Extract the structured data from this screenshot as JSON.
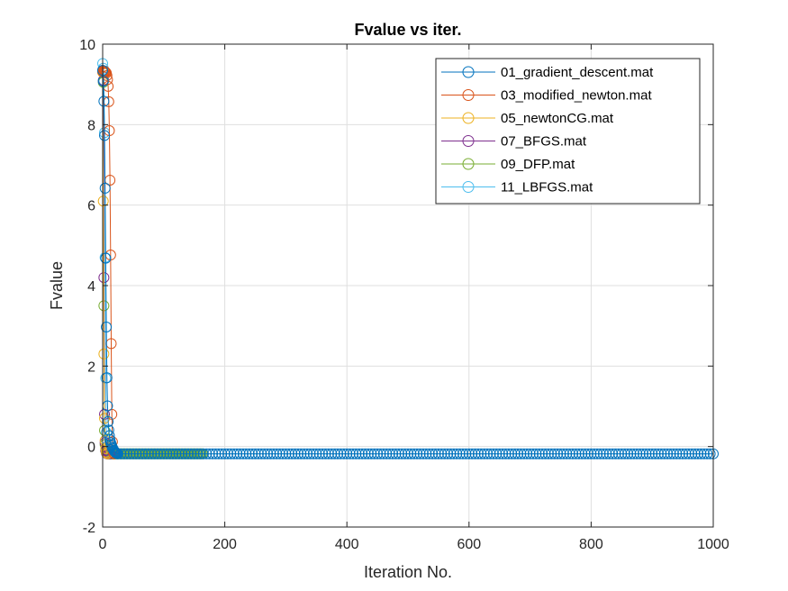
{
  "chart_data": {
    "type": "line",
    "title": "Fvalue vs iter.",
    "xlabel": "Iteration No.",
    "ylabel": "Fvalue",
    "xlim": [
      0,
      1000
    ],
    "ylim": [
      -2,
      10
    ],
    "xticks": [
      0,
      200,
      400,
      600,
      800,
      1000
    ],
    "yticks": [
      -2,
      0,
      2,
      4,
      6,
      8,
      10
    ],
    "xtick_labels": [
      "0",
      "200",
      "400",
      "600",
      "800",
      "1000"
    ],
    "ytick_labels": [
      "-2",
      "0",
      "2",
      "4",
      "6",
      "8",
      "10"
    ],
    "grid": true,
    "legend_position": "top-right",
    "marker": "circle",
    "series": [
      {
        "name": "01_gradient_descent.mat",
        "color": "#0072BD",
        "points": [
          [
            0,
            9.35
          ],
          [
            1,
            9.08
          ],
          [
            2,
            8.58
          ],
          [
            3,
            7.73
          ],
          [
            4,
            6.42
          ],
          [
            5,
            4.68
          ],
          [
            6,
            2.97
          ],
          [
            7,
            1.71
          ],
          [
            8,
            1.01
          ],
          [
            9,
            0.62
          ],
          [
            10,
            0.41
          ],
          [
            11,
            0.27
          ],
          [
            12,
            0.17
          ],
          [
            13,
            0.1
          ],
          [
            14,
            0.05
          ],
          [
            15,
            0.01
          ],
          [
            16,
            -0.03
          ],
          [
            17,
            -0.06
          ],
          [
            18,
            -0.09
          ],
          [
            19,
            -0.11
          ],
          [
            20,
            -0.13
          ],
          [
            21,
            -0.15
          ],
          [
            22,
            -0.16
          ],
          [
            23,
            -0.17
          ],
          [
            24,
            -0.17
          ]
        ],
        "tail": {
          "from": 25,
          "to": 1000,
          "step": 5,
          "y": -0.18
        }
      },
      {
        "name": "03_modified_newton.mat",
        "color": "#D95319",
        "points": [
          [
            0,
            9.32
          ],
          [
            1,
            9.33
          ],
          [
            2,
            9.3
          ],
          [
            3,
            9.33
          ],
          [
            4,
            9.31
          ],
          [
            5,
            9.3
          ],
          [
            6,
            9.28
          ],
          [
            7,
            9.22
          ],
          [
            8,
            9.12
          ],
          [
            9,
            8.95
          ],
          [
            10,
            8.57
          ],
          [
            11,
            7.85
          ],
          [
            12,
            6.62
          ],
          [
            13,
            4.76
          ],
          [
            14,
            2.56
          ],
          [
            15,
            0.8
          ],
          [
            16,
            0.12
          ],
          [
            17,
            -0.1
          ],
          [
            18,
            -0.16
          ],
          [
            19,
            -0.18
          ]
        ]
      },
      {
        "name": "05_newtonCG.mat",
        "color": "#EDB120",
        "points": [
          [
            0,
            9.3
          ],
          [
            1,
            6.1
          ],
          [
            2,
            2.3
          ],
          [
            3,
            0.7
          ],
          [
            4,
            0.15
          ],
          [
            5,
            -0.05
          ],
          [
            6,
            -0.14
          ],
          [
            7,
            -0.17
          ],
          [
            8,
            -0.18
          ]
        ]
      },
      {
        "name": "07_BFGS.mat",
        "color": "#7E2F8E",
        "points": [
          [
            0,
            9.34
          ],
          [
            1,
            9.1
          ],
          [
            2,
            4.2
          ],
          [
            3,
            0.8
          ],
          [
            4,
            0.1
          ],
          [
            5,
            -0.1
          ],
          [
            6,
            -0.16
          ],
          [
            7,
            -0.18
          ],
          [
            8,
            -0.18
          ],
          [
            9,
            -0.18
          ],
          [
            10,
            -0.18
          ],
          [
            11,
            -0.18
          ],
          [
            12,
            -0.18
          ]
        ]
      },
      {
        "name": "09_DFP.mat",
        "color": "#77AC30",
        "points": [
          [
            0,
            9.34
          ],
          [
            1,
            9.05
          ],
          [
            2,
            3.5
          ],
          [
            3,
            0.4
          ],
          [
            4,
            0.05
          ],
          [
            5,
            -0.1
          ],
          [
            6,
            -0.15
          ],
          [
            7,
            -0.17
          ]
        ],
        "tail": {
          "from": 8,
          "to": 165,
          "step": 2,
          "y": -0.18
        }
      },
      {
        "name": "11_LBFGS.mat",
        "color": "#4DBEEE",
        "points": [
          [
            0,
            9.52
          ],
          [
            1,
            9.4
          ],
          [
            2,
            9.1
          ],
          [
            3,
            7.8
          ],
          [
            4,
            4.7
          ],
          [
            5,
            1.7
          ],
          [
            6,
            0.35
          ],
          [
            7,
            0.0
          ],
          [
            8,
            -0.1
          ],
          [
            9,
            -0.14
          ],
          [
            10,
            -0.16
          ],
          [
            11,
            -0.17
          ],
          [
            12,
            -0.17
          ],
          [
            13,
            -0.18
          ],
          [
            14,
            -0.18
          ],
          [
            15,
            -0.18
          ],
          [
            16,
            -0.18
          ],
          [
            17,
            -0.18
          ],
          [
            18,
            -0.18
          ],
          [
            19,
            -0.18
          ],
          [
            20,
            -0.18
          ],
          [
            21,
            -0.18
          ],
          [
            22,
            -0.18
          ],
          [
            23,
            -0.18
          ],
          [
            24,
            -0.18
          ]
        ]
      }
    ]
  }
}
